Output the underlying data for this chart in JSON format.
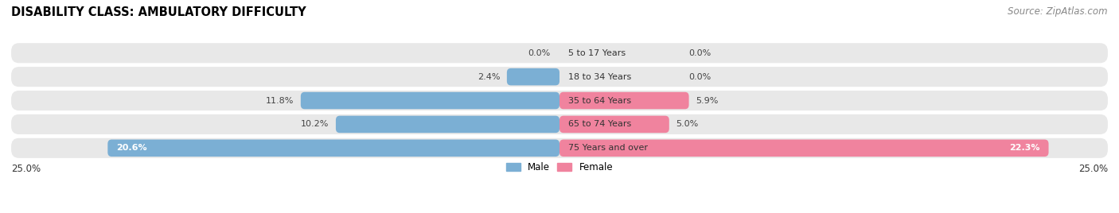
{
  "title": "DISABILITY CLASS: AMBULATORY DIFFICULTY",
  "source": "Source: ZipAtlas.com",
  "categories": [
    "5 to 17 Years",
    "18 to 34 Years",
    "35 to 64 Years",
    "65 to 74 Years",
    "75 Years and over"
  ],
  "male_values": [
    0.0,
    2.4,
    11.8,
    10.2,
    20.6
  ],
  "female_values": [
    0.0,
    0.0,
    5.9,
    5.0,
    22.3
  ],
  "male_color": "#7bafd4",
  "female_color": "#f0839e",
  "row_bg_color": "#e8e8e8",
  "max_value": 25.0,
  "title_fontsize": 10.5,
  "source_fontsize": 8.5,
  "label_fontsize": 8,
  "bar_label_fontsize": 8,
  "legend_fontsize": 8.5
}
